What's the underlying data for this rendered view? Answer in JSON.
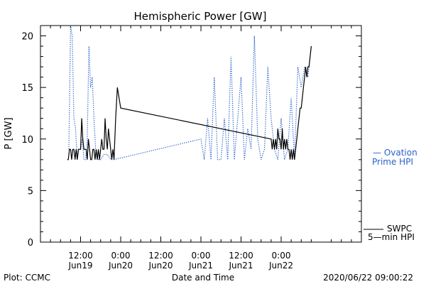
{
  "chart_data": {
    "type": "line",
    "title": "Hemispheric Power [GW]",
    "ylabel": "P [GW]",
    "xlabel": "Date and Time",
    "ylim": [
      0,
      21
    ],
    "yticks": [
      0,
      5,
      10,
      15,
      20
    ],
    "xlim_hours": [
      0,
      96
    ],
    "x_tick_labels": [
      {
        "top": "12:00",
        "bottom": "Jun19"
      },
      {
        "top": "0:00",
        "bottom": "Jun20"
      },
      {
        "top": "12:00",
        "bottom": "Jun20"
      },
      {
        "top": "0:00",
        "bottom": "Jun21"
      },
      {
        "top": "12:00",
        "bottom": "Jun21"
      },
      {
        "top": "0:00",
        "bottom": "Jun22"
      }
    ],
    "series": [
      {
        "name": "Ovation Prime HPI",
        "legend": [
          "— Ovation",
          "Prime HPI"
        ],
        "style": "dotted",
        "color": "#2a62c9",
        "x": [
          "2020-06-19 08:30",
          "2020-06-19 09:00",
          "2020-06-19 09:30",
          "2020-06-19 10:00",
          "2020-06-19 10:30",
          "2020-06-19 11:00",
          "2020-06-19 11:30",
          "2020-06-19 12:00",
          "2020-06-19 12:30",
          "2020-06-19 13:00",
          "2020-06-19 13:30",
          "2020-06-19 14:00",
          "2020-06-19 14:30",
          "2020-06-19 15:00",
          "2020-06-19 15:30",
          "2020-06-19 16:00",
          "2020-06-19 16:30",
          "2020-06-19 17:00",
          "2020-06-19 17:30",
          "2020-06-19 18:00",
          "2020-06-19 19:00",
          "2020-06-19 20:00",
          "2020-06-19 21:00",
          "2020-06-19 22:00",
          "2020-06-21 00:00",
          "2020-06-21 01:00",
          "2020-06-21 02:00",
          "2020-06-21 03:00",
          "2020-06-21 04:00",
          "2020-06-21 05:00",
          "2020-06-21 06:00",
          "2020-06-21 07:00",
          "2020-06-21 08:00",
          "2020-06-21 09:00",
          "2020-06-21 10:00",
          "2020-06-21 11:00",
          "2020-06-21 12:00",
          "2020-06-21 13:00",
          "2020-06-21 14:00",
          "2020-06-21 15:00",
          "2020-06-21 16:00",
          "2020-06-21 17:00",
          "2020-06-21 18:00",
          "2020-06-21 19:00",
          "2020-06-21 20:00",
          "2020-06-21 21:00",
          "2020-06-21 22:00",
          "2020-06-21 23:00",
          "2020-06-22 00:00",
          "2020-06-22 01:00",
          "2020-06-22 02:00",
          "2020-06-22 03:00",
          "2020-06-22 04:00",
          "2020-06-22 05:00",
          "2020-06-22 06:00",
          "2020-06-22 07:00",
          "2020-06-22 08:00",
          "2020-06-22 09:00"
        ],
        "values": [
          9,
          21,
          20,
          12,
          11,
          8,
          9,
          9,
          10,
          8,
          8,
          10,
          19,
          15,
          16,
          12,
          9,
          8,
          8,
          8,
          8.5,
          8.5,
          8,
          8,
          10,
          8,
          12,
          8,
          16,
          8,
          8,
          12,
          8,
          18,
          8,
          12,
          16,
          8,
          11,
          9,
          20,
          10,
          8,
          9,
          17,
          12,
          9,
          8,
          12,
          8,
          9,
          14,
          8,
          17,
          15,
          17,
          16,
          19
        ]
      },
      {
        "name": "SWPC 5-min HPI",
        "legend": [
          "SWPC",
          "5—min HPI"
        ],
        "style": "solid",
        "color": "#000000",
        "x": [
          "2020-06-19 08:00",
          "2020-06-19 08:20",
          "2020-06-19 08:40",
          "2020-06-19 09:00",
          "2020-06-19 09:20",
          "2020-06-19 09:40",
          "2020-06-19 10:00",
          "2020-06-19 10:20",
          "2020-06-19 10:40",
          "2020-06-19 11:00",
          "2020-06-19 11:20",
          "2020-06-19 11:40",
          "2020-06-19 12:00",
          "2020-06-19 12:20",
          "2020-06-19 12:40",
          "2020-06-19 13:00",
          "2020-06-19 13:20",
          "2020-06-19 13:40",
          "2020-06-19 14:00",
          "2020-06-19 14:20",
          "2020-06-19 14:40",
          "2020-06-19 15:00",
          "2020-06-19 15:20",
          "2020-06-19 15:40",
          "2020-06-19 16:00",
          "2020-06-19 16:20",
          "2020-06-19 16:40",
          "2020-06-19 17:00",
          "2020-06-19 17:20",
          "2020-06-19 17:40",
          "2020-06-19 18:00",
          "2020-06-19 18:20",
          "2020-06-19 18:40",
          "2020-06-19 19:00",
          "2020-06-19 19:20",
          "2020-06-19 19:40",
          "2020-06-19 20:00",
          "2020-06-19 20:20",
          "2020-06-19 20:40",
          "2020-06-19 21:00",
          "2020-06-19 21:20",
          "2020-06-19 21:40",
          "2020-06-19 22:00",
          "2020-06-19 22:30",
          "2020-06-19 23:00",
          "2020-06-20 00:00",
          "2020-06-21 21:00",
          "2020-06-21 21:20",
          "2020-06-21 21:40",
          "2020-06-21 22:00",
          "2020-06-21 22:20",
          "2020-06-21 22:40",
          "2020-06-21 23:00",
          "2020-06-21 23:20",
          "2020-06-21 23:40",
          "2020-06-22 00:00",
          "2020-06-22 00:20",
          "2020-06-22 00:40",
          "2020-06-22 01:00",
          "2020-06-22 01:20",
          "2020-06-22 01:40",
          "2020-06-22 02:00",
          "2020-06-22 02:20",
          "2020-06-22 02:40",
          "2020-06-22 03:00",
          "2020-06-22 03:20",
          "2020-06-22 03:40",
          "2020-06-22 04:00",
          "2020-06-22 04:20",
          "2020-06-22 04:40",
          "2020-06-22 05:00",
          "2020-06-22 05:20",
          "2020-06-22 05:40",
          "2020-06-22 06:00",
          "2020-06-22 06:20",
          "2020-06-22 06:40",
          "2020-06-22 07:00",
          "2020-06-22 07:20",
          "2020-06-22 07:40",
          "2020-06-22 08:00",
          "2020-06-22 08:20",
          "2020-06-22 08:40",
          "2020-06-22 09:00"
        ],
        "values": [
          8,
          8,
          9,
          9,
          8,
          9,
          9,
          8,
          9,
          8,
          9,
          9,
          9,
          12,
          10,
          9,
          9,
          9,
          8,
          10,
          9,
          8,
          8,
          9,
          9,
          8,
          9,
          8,
          9,
          8,
          9,
          10,
          9,
          9,
          12,
          10,
          9,
          11,
          10,
          9,
          8,
          9,
          8,
          12,
          15,
          13,
          10,
          9,
          10,
          9,
          10,
          9,
          11,
          10,
          10,
          9,
          11,
          9,
          10,
          9,
          10,
          9,
          9,
          8,
          9,
          8,
          9,
          8,
          9,
          10,
          11,
          12,
          13,
          13,
          14,
          15,
          16,
          17,
          16,
          17,
          17,
          18,
          19
        ]
      }
    ],
    "footer_left": "Plot: CCMC",
    "footer_right": "2020/06/22 09:00:22"
  }
}
